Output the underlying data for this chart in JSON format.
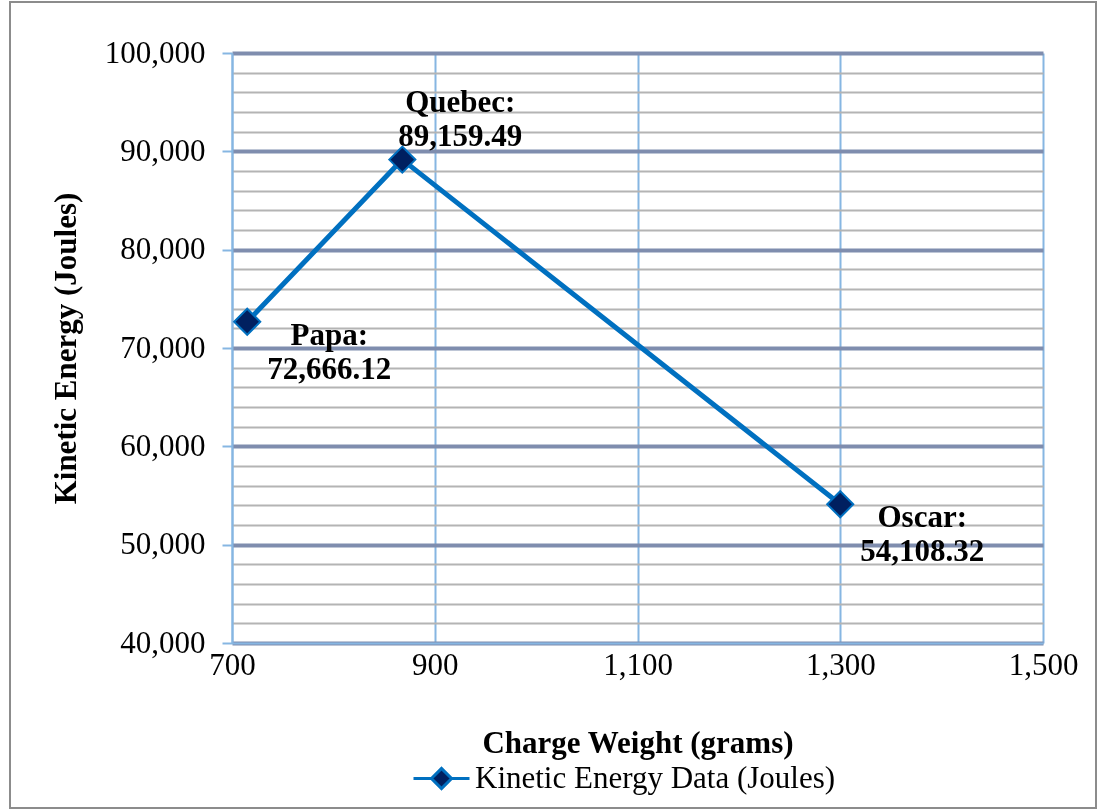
{
  "chart_data": {
    "type": "line",
    "xlabel": "Charge Weight (grams)",
    "ylabel": "Kinetic Energy (Joules)",
    "x": [
      715,
      868,
      1300
    ],
    "series": [
      {
        "name": "Kinetic Energy Data (Joules)",
        "color": "#0070c0",
        "values": [
          72666.12,
          89159.49,
          54108.32
        ],
        "value_labels": [
          "Papa: 72,666.12",
          "Quebec: 89,159.49",
          "Oscar: 54,108.32"
        ]
      }
    ],
    "xlim": [
      700,
      1500
    ],
    "xticks": [
      700,
      900,
      {
        "value": 1100,
        "label": "1,100"
      },
      {
        "value": 1300,
        "label": "1,300"
      },
      {
        "value": 1500,
        "label": "1,500"
      }
    ],
    "ylim": [
      40000,
      100000
    ],
    "yticks": [
      {
        "value": 40000,
        "label": "40,000"
      },
      {
        "value": 42000,
        "label": null
      },
      {
        "value": 44000,
        "label": null
      },
      {
        "value": 46000,
        "label": null
      },
      {
        "value": 48000,
        "label": null
      },
      {
        "value": 50000,
        "label": "50,000"
      },
      {
        "value": 52000,
        "label": null
      },
      {
        "value": 54000,
        "label": null
      },
      {
        "value": 56000,
        "label": null
      },
      {
        "value": 58000,
        "label": null
      },
      {
        "value": 60000,
        "label": "60,000"
      },
      {
        "value": 62000,
        "label": null
      },
      {
        "value": 64000,
        "label": null
      },
      {
        "value": 66000,
        "label": null
      },
      {
        "value": 68000,
        "label": null
      },
      {
        "value": 70000,
        "label": "70,000"
      },
      {
        "value": 72000,
        "label": null
      },
      {
        "value": 74000,
        "label": null
      },
      {
        "value": 76000,
        "label": null
      },
      {
        "value": 78000,
        "label": null
      },
      {
        "value": 80000,
        "label": "80,000"
      },
      {
        "value": 82000,
        "label": null
      },
      {
        "value": 84000,
        "label": null
      },
      {
        "value": 86000,
        "label": null
      },
      {
        "value": 88000,
        "label": null
      },
      {
        "value": 90000,
        "label": "90,000"
      },
      {
        "value": 92000,
        "label": null
      },
      {
        "value": 94000,
        "label": null
      },
      {
        "value": 96000,
        "label": null
      },
      {
        "value": 98000,
        "label": null
      },
      {
        "value": 100000,
        "label": "100,000"
      }
    ],
    "grid": true,
    "legend": "bottom",
    "marker": "diamond",
    "line_style": "solid"
  }
}
